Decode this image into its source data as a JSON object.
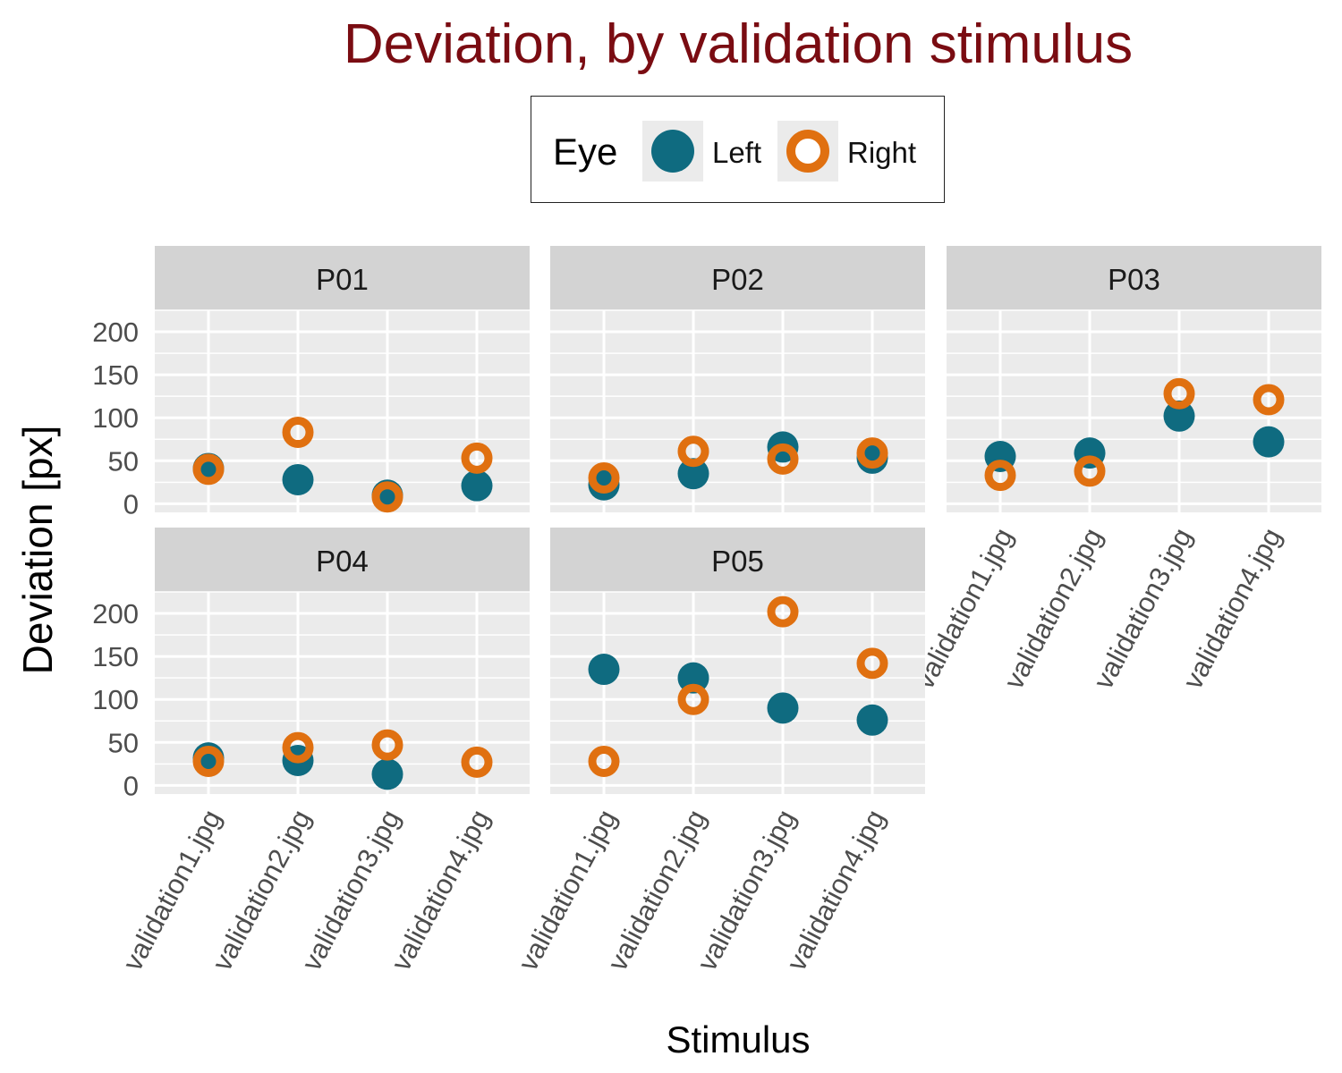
{
  "chart_data": {
    "type": "scatter",
    "title": "Deviation, by validation stimulus",
    "xlabel": "Stimulus",
    "ylabel": "Deviation [px]",
    "ylim": [
      -10,
      225
    ],
    "yticks": [
      0,
      50,
      100,
      150,
      200
    ],
    "grid": true,
    "legend": {
      "title": "Eye",
      "placement": "top",
      "entries": [
        "Left",
        "Right"
      ]
    },
    "categories": [
      "validation1.jpg",
      "validation2.jpg",
      "validation3.jpg",
      "validation4.jpg"
    ],
    "colors": {
      "Left": "#0f6b80",
      "Right": "#e07010",
      "title": "#7a0c12"
    },
    "panels": [
      {
        "name": "P01",
        "series": [
          {
            "name": "Left",
            "values": [
              41,
              28,
              10,
              21
            ]
          },
          {
            "name": "Right",
            "values": [
              40,
              83,
              8,
              53
            ]
          }
        ]
      },
      {
        "name": "P02",
        "series": [
          {
            "name": "Left",
            "values": [
              22,
              35,
              66,
              53
            ]
          },
          {
            "name": "Right",
            "values": [
              30,
              61,
              52,
              59
            ]
          }
        ]
      },
      {
        "name": "P03",
        "series": [
          {
            "name": "Left",
            "values": [
              55,
              59,
              102,
              72
            ]
          },
          {
            "name": "Right",
            "values": [
              33,
              38,
              128,
              121
            ]
          }
        ]
      },
      {
        "name": "P04",
        "series": [
          {
            "name": "Left",
            "values": [
              32,
              29,
              13,
              null
            ]
          },
          {
            "name": "Right",
            "values": [
              28,
              44,
              47,
              27
            ]
          }
        ]
      },
      {
        "name": "P05",
        "series": [
          {
            "name": "Left",
            "values": [
              135,
              125,
              90,
              76
            ]
          },
          {
            "name": "Right",
            "values": [
              28,
              100,
              202,
              142
            ]
          }
        ]
      }
    ]
  }
}
